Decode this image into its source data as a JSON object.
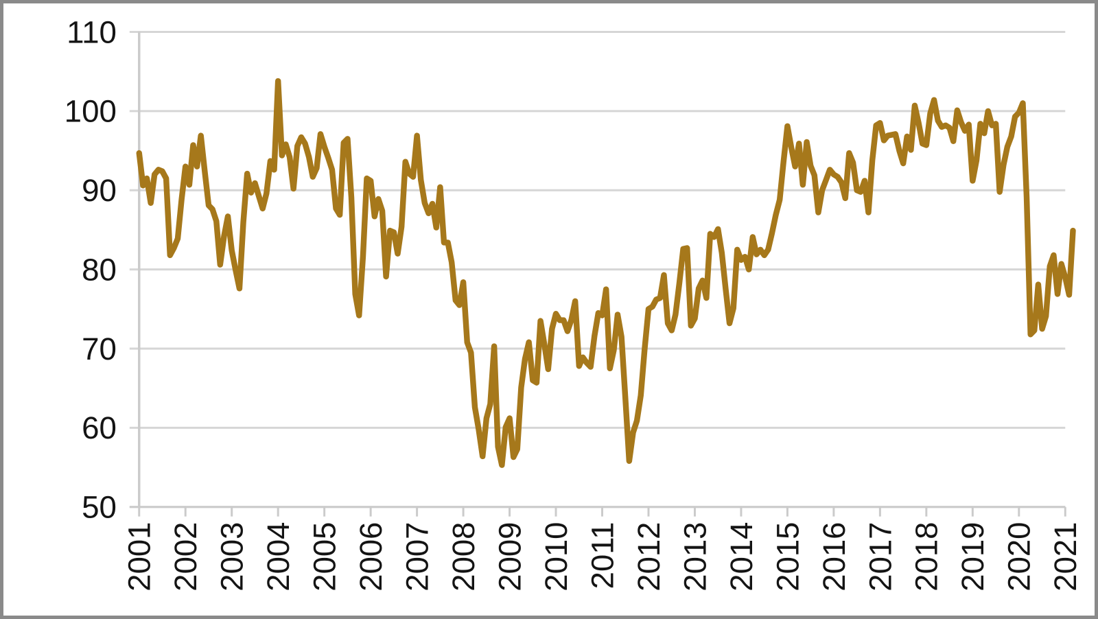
{
  "chart_data": {
    "type": "line",
    "title": "",
    "xlabel": "",
    "ylabel": "",
    "legend": "none",
    "grid": "horizontal",
    "ylim": [
      50,
      110
    ],
    "y_tick_labels": [
      "50",
      "60",
      "70",
      "80",
      "90",
      "100",
      "110"
    ],
    "x_tick_labels": [
      "2001",
      "2002",
      "2003",
      "2004",
      "2005",
      "2006",
      "2007",
      "2008",
      "2009",
      "2010",
      "2011",
      "2012",
      "2013",
      "2014",
      "2015",
      "2016",
      "2017",
      "2018",
      "2019",
      "2020",
      "2021"
    ],
    "x_start_year": 2001,
    "points_per_year": 12,
    "series": [
      {
        "values": [
          94.7,
          90.6,
          91.5,
          88.4,
          92.0,
          92.6,
          92.4,
          91.5,
          81.8,
          82.7,
          83.9,
          88.8,
          93.0,
          90.7,
          95.7,
          93.0,
          96.9,
          92.4,
          88.1,
          87.6,
          86.1,
          80.6,
          84.2,
          86.7,
          82.4,
          79.9,
          77.6,
          86.0,
          92.1,
          89.7,
          90.9,
          89.3,
          87.7,
          89.6,
          93.7,
          92.6,
          103.8,
          94.4,
          95.8,
          94.2,
          90.2,
          95.6,
          96.7,
          95.9,
          94.2,
          91.7,
          92.8,
          97.1,
          95.5,
          94.1,
          92.6,
          87.7,
          86.9,
          96.0,
          96.5,
          89.1,
          76.9,
          74.2,
          81.6,
          91.5,
          91.2,
          86.7,
          88.9,
          87.4,
          79.1,
          84.9,
          84.7,
          82.0,
          85.4,
          93.6,
          92.1,
          91.7,
          96.9,
          91.3,
          88.4,
          87.1,
          88.3,
          85.3,
          90.4,
          83.4,
          83.4,
          80.9,
          76.1,
          75.5,
          78.4,
          70.8,
          69.5,
          62.6,
          59.8,
          56.4,
          61.2,
          63.0,
          70.3,
          57.6,
          55.3,
          60.1,
          61.2,
          56.3,
          57.3,
          65.1,
          68.7,
          70.8,
          66.0,
          65.7,
          73.5,
          70.6,
          67.4,
          72.5,
          74.4,
          73.6,
          73.6,
          72.2,
          73.6,
          76.0,
          67.8,
          68.9,
          68.2,
          67.7,
          71.6,
          74.5,
          74.2,
          77.5,
          67.5,
          69.8,
          74.3,
          71.5,
          63.7,
          55.8,
          59.4,
          60.9,
          64.1,
          69.9,
          75.0,
          75.3,
          76.2,
          76.4,
          79.3,
          73.2,
          72.3,
          74.3,
          78.3,
          82.6,
          82.7,
          72.9,
          73.8,
          77.6,
          78.6,
          76.4,
          84.5,
          84.1,
          85.1,
          82.1,
          77.5,
          73.2,
          75.1,
          82.5,
          81.2,
          81.6,
          80.0,
          84.1,
          81.9,
          82.5,
          81.8,
          82.5,
          84.6,
          86.9,
          88.8,
          93.6,
          98.1,
          95.4,
          93.0,
          95.9,
          90.7,
          96.1,
          93.1,
          91.9,
          87.2,
          90.0,
          91.3,
          92.6,
          92.0,
          91.7,
          91.0,
          89.0,
          94.7,
          93.5,
          90.0,
          89.8,
          91.2,
          87.2,
          93.8,
          98.2,
          98.5,
          96.3,
          96.9,
          97.0,
          97.1,
          95.0,
          93.4,
          96.8,
          95.1,
          100.7,
          98.5,
          95.9,
          95.7,
          99.7,
          101.4,
          98.8,
          98.0,
          98.2,
          97.9,
          96.2,
          100.1,
          98.6,
          97.5,
          98.3,
          91.2,
          93.8,
          98.4,
          97.2,
          100.0,
          98.2,
          98.4,
          89.8,
          93.2,
          95.5,
          96.8,
          99.3,
          99.8,
          101.0,
          89.1,
          71.8,
          72.3,
          78.1,
          72.5,
          74.1,
          80.4,
          81.8,
          76.9,
          80.7,
          79.0,
          76.8,
          84.9
        ]
      }
    ]
  },
  "style": {
    "line_color": "#A6781B",
    "line_width": 8.5,
    "grid_color": "#D6D6D6",
    "axis_color": "#CBCBCB",
    "text_color": "#141414",
    "frame_border_color": "#8A8A8A",
    "background": "#FFFFFF"
  }
}
